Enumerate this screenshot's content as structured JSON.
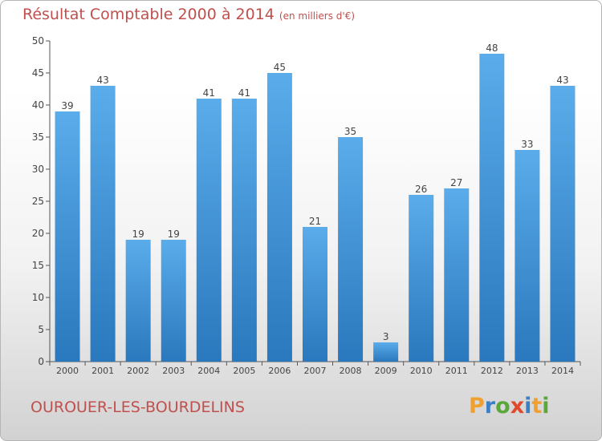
{
  "header": {
    "title": "Résultat Comptable 2000 à 2014",
    "subtitle": "(en milliers d'€)"
  },
  "footer": {
    "commune": "OUROUER-LES-BOURDELINS"
  },
  "logo": {
    "text": "Proxiti",
    "letters": [
      {
        "ch": "P",
        "color": "#f0a030"
      },
      {
        "ch": "r",
        "color": "#3d7fc4"
      },
      {
        "ch": "o",
        "color": "#5ba83a"
      },
      {
        "ch": "x",
        "color": "#e04a2a"
      },
      {
        "ch": "i",
        "color": "#3d7fc4"
      },
      {
        "ch": "t",
        "color": "#f0a030"
      },
      {
        "ch": "i",
        "color": "#5ba83a"
      }
    ]
  },
  "colors": {
    "title": "#c0504d",
    "bar_light": "#5aacea",
    "bar_dark": "#2a78bd",
    "axis": "#555555"
  },
  "chart_data": {
    "type": "bar",
    "title": "Résultat Comptable 2000 à 2014",
    "subtitle": "(en milliers d'€)",
    "categories": [
      "2000",
      "2001",
      "2002",
      "2003",
      "2004",
      "2005",
      "2006",
      "2007",
      "2008",
      "2009",
      "2010",
      "2011",
      "2012",
      "2013",
      "2014"
    ],
    "values": [
      39,
      43,
      19,
      19,
      41,
      41,
      45,
      21,
      35,
      3,
      26,
      27,
      48,
      33,
      43
    ],
    "ylim": [
      0,
      50
    ],
    "yticks": [
      0,
      5,
      10,
      15,
      20,
      25,
      30,
      35,
      40,
      45,
      50
    ],
    "grid": false,
    "data_labels": true
  }
}
